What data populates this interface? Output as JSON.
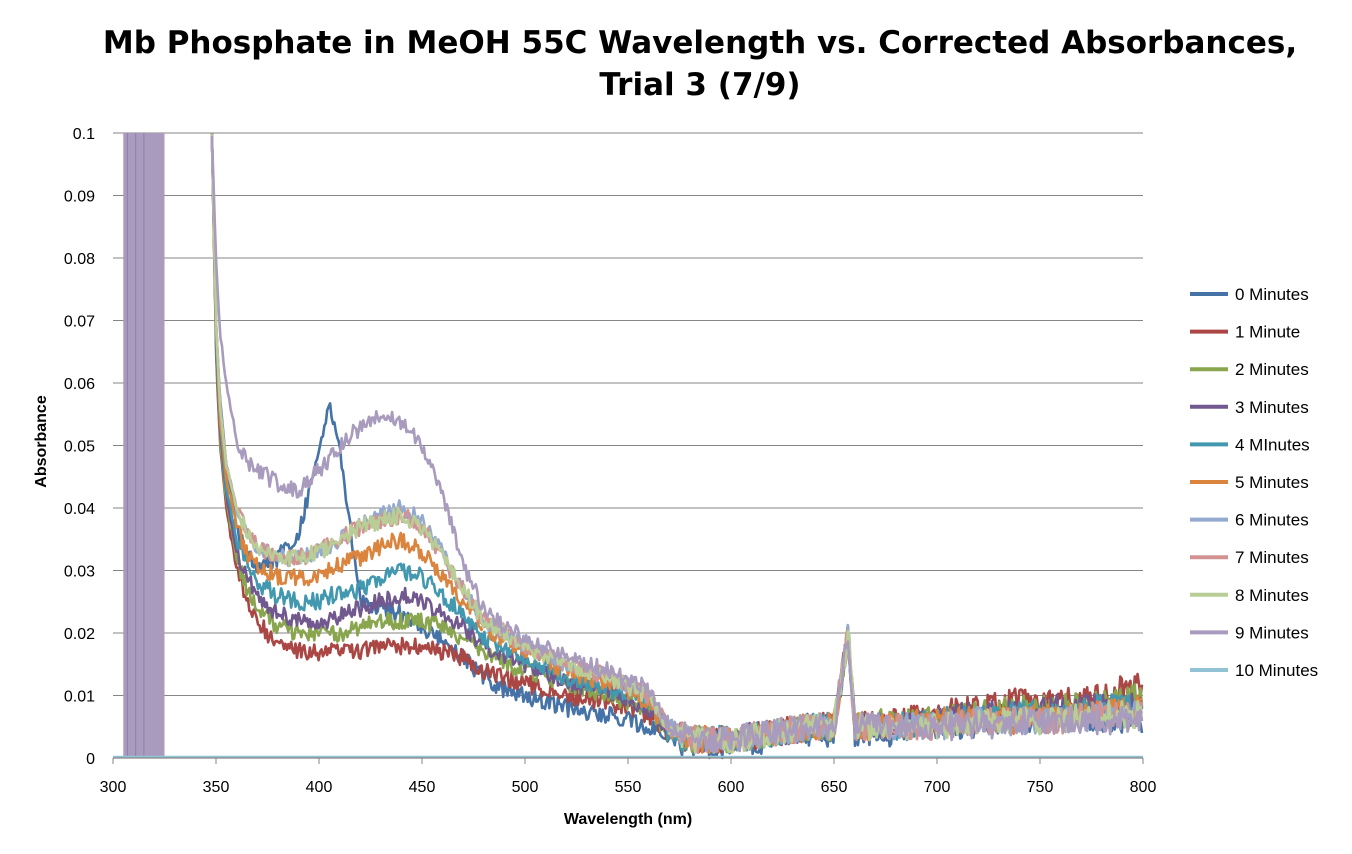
{
  "chart_data": {
    "type": "line",
    "title_line1": "Mb Phosphate in MeOH 55C Wavelength vs. Corrected Absorbances,",
    "title_line2": "Trial 3 (7/9)",
    "xlabel": "Wavelength (nm)",
    "ylabel": "Absorbance",
    "xlim": [
      300,
      800
    ],
    "ylim": [
      0,
      0.1
    ],
    "x_ticks": [
      "300",
      "350",
      "400",
      "450",
      "500",
      "550",
      "600",
      "650",
      "700",
      "750",
      "800"
    ],
    "y_ticks": [
      "0",
      "0.01",
      "0.02",
      "0.03",
      "0.04",
      "0.05",
      "0.06",
      "0.07",
      "0.08",
      "0.09",
      "0.1"
    ],
    "grid": "horizontal",
    "legend_position": "right",
    "x": [
      348,
      350,
      352,
      355,
      360,
      365,
      370,
      380,
      390,
      400,
      405,
      410,
      420,
      430,
      440,
      450,
      460,
      470,
      480,
      490,
      500,
      520,
      540,
      560,
      570,
      580,
      600,
      620,
      640,
      650,
      657,
      660,
      680,
      700,
      720,
      740,
      760,
      780,
      800
    ],
    "series": [
      {
        "name": "0 Minutes",
        "color": "#4572A7",
        "values": [
          0.1,
          0.07,
          0.057,
          0.047,
          0.037,
          0.033,
          0.031,
          0.032,
          0.036,
          0.049,
          0.057,
          0.05,
          0.025,
          0.024,
          0.023,
          0.021,
          0.019,
          0.016,
          0.013,
          0.011,
          0.01,
          0.008,
          0.007,
          0.005,
          0.003,
          0.002,
          0.002,
          0.003,
          0.004,
          0.004,
          0.02,
          0.004,
          0.004,
          0.005,
          0.005,
          0.006,
          0.006,
          0.006,
          0.006
        ]
      },
      {
        "name": "1 Minute",
        "color": "#AA4643",
        "values": [
          0.1,
          0.065,
          0.05,
          0.04,
          0.03,
          0.025,
          0.022,
          0.018,
          0.017,
          0.017,
          0.017,
          0.017,
          0.017,
          0.018,
          0.018,
          0.018,
          0.017,
          0.016,
          0.014,
          0.013,
          0.012,
          0.01,
          0.009,
          0.007,
          0.004,
          0.003,
          0.003,
          0.004,
          0.005,
          0.005,
          0.02,
          0.005,
          0.006,
          0.007,
          0.008,
          0.009,
          0.009,
          0.01,
          0.012
        ]
      },
      {
        "name": "2 Minutes",
        "color": "#89A54E",
        "values": [
          0.1,
          0.066,
          0.051,
          0.041,
          0.032,
          0.027,
          0.024,
          0.021,
          0.02,
          0.02,
          0.02,
          0.02,
          0.021,
          0.022,
          0.022,
          0.022,
          0.021,
          0.019,
          0.017,
          0.015,
          0.014,
          0.012,
          0.01,
          0.008,
          0.004,
          0.003,
          0.003,
          0.004,
          0.005,
          0.005,
          0.02,
          0.005,
          0.006,
          0.006,
          0.007,
          0.008,
          0.008,
          0.009,
          0.01
        ]
      },
      {
        "name": "3 Minutes",
        "color": "#71588F",
        "values": [
          0.1,
          0.067,
          0.052,
          0.042,
          0.033,
          0.029,
          0.026,
          0.023,
          0.022,
          0.022,
          0.022,
          0.023,
          0.024,
          0.025,
          0.026,
          0.025,
          0.023,
          0.021,
          0.018,
          0.016,
          0.015,
          0.012,
          0.011,
          0.008,
          0.004,
          0.003,
          0.003,
          0.004,
          0.005,
          0.005,
          0.02,
          0.005,
          0.005,
          0.006,
          0.007,
          0.007,
          0.008,
          0.008,
          0.009
        ]
      },
      {
        "name": "4 MInutes",
        "color": "#4198AF",
        "values": [
          0.1,
          0.068,
          0.053,
          0.043,
          0.035,
          0.031,
          0.028,
          0.026,
          0.025,
          0.025,
          0.026,
          0.026,
          0.027,
          0.029,
          0.03,
          0.029,
          0.026,
          0.023,
          0.019,
          0.017,
          0.016,
          0.013,
          0.011,
          0.009,
          0.004,
          0.003,
          0.003,
          0.004,
          0.005,
          0.005,
          0.02,
          0.005,
          0.005,
          0.006,
          0.006,
          0.007,
          0.007,
          0.008,
          0.008
        ]
      },
      {
        "name": "5 Minutes",
        "color": "#DB843D",
        "values": [
          0.1,
          0.069,
          0.054,
          0.045,
          0.037,
          0.033,
          0.031,
          0.029,
          0.029,
          0.029,
          0.03,
          0.031,
          0.032,
          0.034,
          0.035,
          0.033,
          0.029,
          0.025,
          0.021,
          0.019,
          0.017,
          0.014,
          0.012,
          0.009,
          0.004,
          0.003,
          0.003,
          0.004,
          0.005,
          0.005,
          0.02,
          0.005,
          0.005,
          0.006,
          0.006,
          0.006,
          0.007,
          0.007,
          0.008
        ]
      },
      {
        "name": "6 Minutes",
        "color": "#93A9CF",
        "values": [
          0.1,
          0.07,
          0.056,
          0.047,
          0.04,
          0.036,
          0.034,
          0.032,
          0.032,
          0.033,
          0.034,
          0.035,
          0.037,
          0.039,
          0.04,
          0.038,
          0.033,
          0.027,
          0.022,
          0.02,
          0.018,
          0.015,
          0.013,
          0.01,
          0.005,
          0.003,
          0.003,
          0.004,
          0.005,
          0.005,
          0.02,
          0.005,
          0.005,
          0.005,
          0.006,
          0.006,
          0.006,
          0.007,
          0.007
        ]
      },
      {
        "name": "7 Minutes",
        "color": "#D19392",
        "values": [
          0.1,
          0.07,
          0.056,
          0.047,
          0.04,
          0.036,
          0.034,
          0.032,
          0.032,
          0.033,
          0.034,
          0.035,
          0.037,
          0.038,
          0.039,
          0.037,
          0.032,
          0.027,
          0.022,
          0.02,
          0.018,
          0.015,
          0.013,
          0.01,
          0.005,
          0.003,
          0.003,
          0.004,
          0.005,
          0.005,
          0.02,
          0.005,
          0.005,
          0.005,
          0.006,
          0.006,
          0.006,
          0.007,
          0.007
        ]
      },
      {
        "name": "8 Minutes",
        "color": "#B9CD96",
        "values": [
          0.1,
          0.07,
          0.056,
          0.047,
          0.04,
          0.036,
          0.034,
          0.032,
          0.032,
          0.033,
          0.034,
          0.035,
          0.037,
          0.038,
          0.039,
          0.037,
          0.032,
          0.027,
          0.022,
          0.02,
          0.018,
          0.015,
          0.013,
          0.01,
          0.005,
          0.003,
          0.003,
          0.004,
          0.005,
          0.005,
          0.02,
          0.005,
          0.005,
          0.005,
          0.006,
          0.006,
          0.006,
          0.007,
          0.007
        ]
      },
      {
        "name": "9 Minutes",
        "color": "#A99BBD",
        "values": [
          0.1,
          0.08,
          0.068,
          0.06,
          0.051,
          0.047,
          0.046,
          0.044,
          0.043,
          0.046,
          0.048,
          0.05,
          0.053,
          0.055,
          0.054,
          0.05,
          0.042,
          0.031,
          0.024,
          0.021,
          0.019,
          0.016,
          0.014,
          0.011,
          0.005,
          0.003,
          0.003,
          0.004,
          0.005,
          0.005,
          0.02,
          0.005,
          0.005,
          0.005,
          0.005,
          0.006,
          0.006,
          0.006,
          0.006
        ]
      },
      {
        "name": "10 Minutes",
        "color": "#91C3D5",
        "values": [
          0,
          0,
          0,
          0,
          0,
          0,
          0,
          0,
          0,
          0,
          0,
          0,
          0,
          0,
          0,
          0,
          0,
          0,
          0,
          0,
          0,
          0,
          0,
          0,
          0,
          0,
          0,
          0,
          0,
          0,
          0,
          0,
          0,
          0,
          0,
          0,
          0,
          0,
          0
        ]
      }
    ],
    "artifact_band": {
      "color": "#A99BBD",
      "x_range": [
        305,
        325
      ],
      "note_series": "9 Minutes"
    }
  }
}
